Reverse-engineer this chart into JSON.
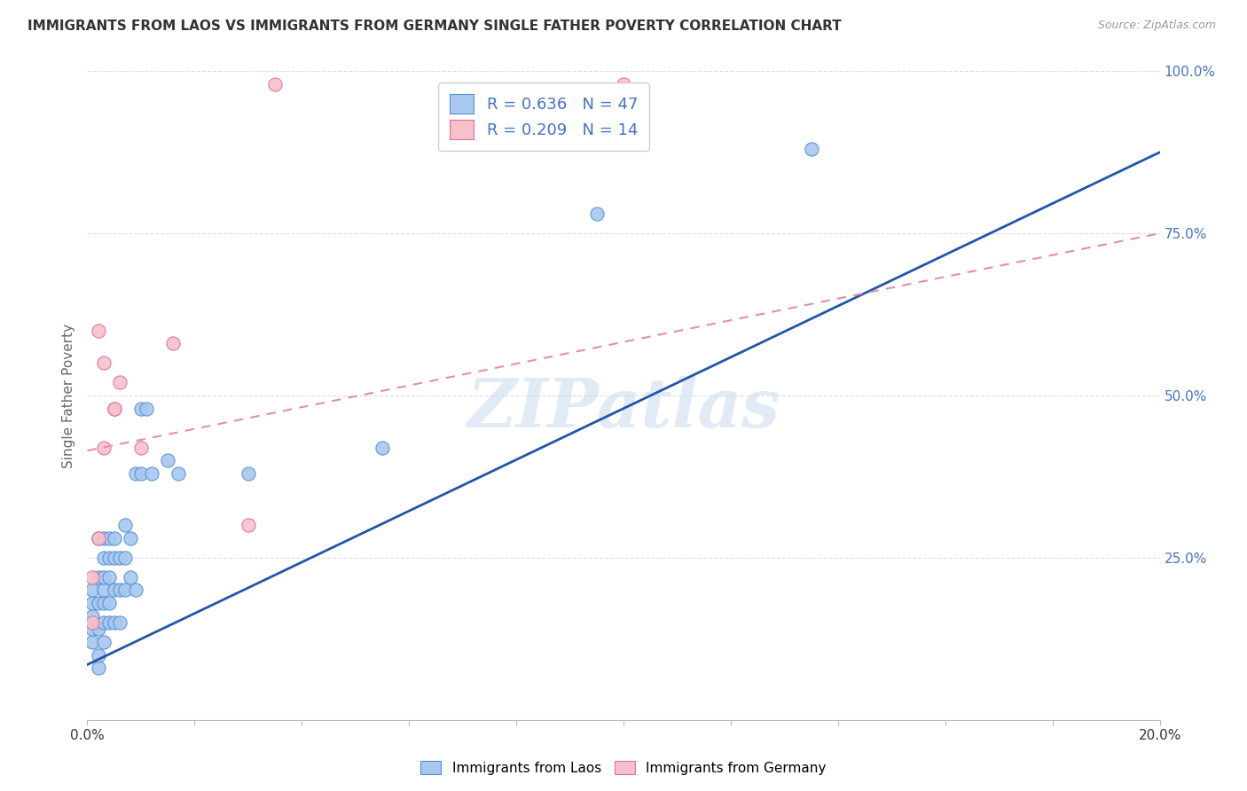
{
  "title": "IMMIGRANTS FROM LAOS VS IMMIGRANTS FROM GERMANY SINGLE FATHER POVERTY CORRELATION CHART",
  "source": "Source: ZipAtlas.com",
  "ylabel": "Single Father Poverty",
  "legend_bottom": [
    "Immigrants from Laos",
    "Immigrants from Germany"
  ],
  "xlim": [
    0.0,
    0.2
  ],
  "ylim": [
    0.0,
    1.0
  ],
  "ytick_positions": [
    1.0,
    0.75,
    0.5,
    0.25
  ],
  "ytick_labels_right": [
    "100.0%",
    "75.0%",
    "50.0%",
    "25.0%"
  ],
  "xtick_positions": [
    0.0,
    0.02,
    0.04,
    0.06,
    0.08,
    0.1,
    0.12,
    0.14,
    0.16,
    0.18,
    0.2
  ],
  "laos_color": "#A8C8F0",
  "laos_edge_color": "#5090D0",
  "germany_color": "#F8C0CC",
  "germany_edge_color": "#E07090",
  "laos_line_color": "#2255AA",
  "germany_line_color": "#E090A8",
  "r_laos": 0.636,
  "n_laos": 47,
  "r_germany": 0.209,
  "n_germany": 14,
  "watermark": "ZIPatlas",
  "laos_line_x0": 0.0,
  "laos_line_y0": 0.085,
  "laos_line_x1": 0.2,
  "laos_line_y1": 0.875,
  "germany_line_x0": 0.0,
  "germany_line_y0": 0.415,
  "germany_line_x1": 0.2,
  "germany_line_y1": 0.75,
  "laos_points_x": [
    0.001,
    0.001,
    0.001,
    0.001,
    0.001,
    0.002,
    0.002,
    0.002,
    0.002,
    0.002,
    0.002,
    0.003,
    0.003,
    0.003,
    0.003,
    0.003,
    0.003,
    0.003,
    0.004,
    0.004,
    0.004,
    0.004,
    0.004,
    0.005,
    0.005,
    0.005,
    0.005,
    0.006,
    0.006,
    0.006,
    0.007,
    0.007,
    0.007,
    0.008,
    0.008,
    0.009,
    0.009,
    0.01,
    0.01,
    0.011,
    0.012,
    0.015,
    0.017,
    0.03,
    0.055,
    0.095,
    0.135
  ],
  "laos_points_y": [
    0.12,
    0.14,
    0.16,
    0.18,
    0.2,
    0.08,
    0.1,
    0.14,
    0.18,
    0.22,
    0.28,
    0.12,
    0.15,
    0.18,
    0.2,
    0.22,
    0.25,
    0.28,
    0.15,
    0.18,
    0.22,
    0.25,
    0.28,
    0.15,
    0.2,
    0.25,
    0.28,
    0.15,
    0.2,
    0.25,
    0.2,
    0.25,
    0.3,
    0.22,
    0.28,
    0.2,
    0.38,
    0.38,
    0.48,
    0.48,
    0.38,
    0.4,
    0.38,
    0.38,
    0.42,
    0.78,
    0.88
  ],
  "germany_points_x": [
    0.001,
    0.001,
    0.002,
    0.002,
    0.003,
    0.003,
    0.005,
    0.005,
    0.006,
    0.01,
    0.016,
    0.03,
    0.035,
    0.1
  ],
  "germany_points_y": [
    0.15,
    0.22,
    0.28,
    0.6,
    0.42,
    0.55,
    0.48,
    0.48,
    0.52,
    0.42,
    0.58,
    0.3,
    0.98,
    0.98
  ],
  "background_color": "#FFFFFF",
  "grid_color": "#DDDDDD"
}
